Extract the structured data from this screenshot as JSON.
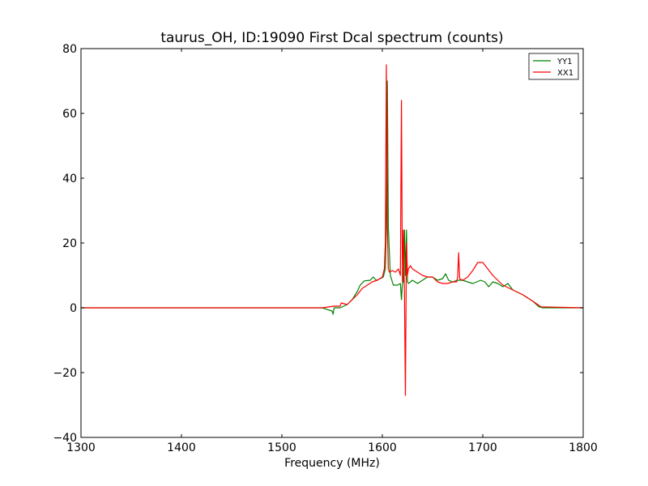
{
  "chart_data": {
    "type": "line",
    "title": "taurus_OH, ID:19090 First Dcal spectrum (counts)",
    "xlabel": "Frequency (MHz)",
    "ylabel": "",
    "xlim": [
      1300,
      1800
    ],
    "ylim": [
      -40,
      80
    ],
    "xticks": [
      1300,
      1400,
      1500,
      1600,
      1700,
      1800
    ],
    "yticks": [
      -40,
      -20,
      0,
      20,
      40,
      60,
      80
    ],
    "xtick_labels": [
      "1300",
      "1400",
      "1500",
      "1600",
      "1700",
      "1800"
    ],
    "ytick_labels": [
      "−40",
      "−20",
      "0",
      "20",
      "40",
      "60",
      "80"
    ],
    "grid": false,
    "legend_position": "top-right",
    "series": [
      {
        "name": "YY1",
        "color": "#008000",
        "x": [
          1300,
          1400,
          1500,
          1540,
          1550,
          1551,
          1552,
          1558,
          1565,
          1570,
          1575,
          1578,
          1582,
          1588,
          1591,
          1594,
          1598,
          1601,
          1603,
          1604,
          1605,
          1606,
          1608,
          1611,
          1615,
          1618,
          1619,
          1620,
          1621,
          1622,
          1623,
          1624,
          1625,
          1626,
          1630,
          1635,
          1640,
          1645,
          1650,
          1655,
          1660,
          1663,
          1666,
          1670,
          1675,
          1680,
          1690,
          1698,
          1702,
          1706,
          1710,
          1715,
          1720,
          1725,
          1730,
          1740,
          1750,
          1756,
          1760,
          1800
        ],
        "y": [
          0,
          0,
          0,
          0,
          -1,
          -2,
          0,
          0,
          1,
          2.5,
          5,
          7,
          8.3,
          8.5,
          9.5,
          8.5,
          9,
          9.5,
          12,
          25,
          70,
          25,
          10,
          7,
          7,
          7.5,
          2.5,
          7.5,
          8,
          24,
          10,
          24,
          8,
          7.5,
          8.5,
          7.5,
          8.5,
          9.5,
          9.5,
          8.5,
          9,
          10.5,
          8.5,
          8,
          8.5,
          8.5,
          7.5,
          8.5,
          8,
          6.5,
          8,
          7.5,
          6.5,
          7.5,
          5.5,
          4,
          2,
          0.3,
          0,
          0
        ]
      },
      {
        "name": "XX1",
        "color": "#ff0000",
        "x": [
          1300,
          1400,
          1500,
          1540,
          1552,
          1558,
          1559,
          1565,
          1570,
          1575,
          1580,
          1585,
          1590,
          1595,
          1600,
          1602,
          1603,
          1604,
          1605,
          1606,
          1607,
          1610,
          1613,
          1616,
          1618,
          1619,
          1620,
          1621,
          1622,
          1623,
          1624,
          1625,
          1626,
          1628,
          1630,
          1635,
          1640,
          1645,
          1650,
          1655,
          1660,
          1665,
          1670,
          1674,
          1675,
          1676,
          1677,
          1680,
          1685,
          1690,
          1695,
          1700,
          1705,
          1710,
          1715,
          1720,
          1730,
          1740,
          1750,
          1758,
          1800
        ],
        "y": [
          0,
          0,
          0,
          0,
          0.5,
          0.5,
          1.5,
          1,
          2.5,
          4,
          6,
          7,
          8,
          8.5,
          9.5,
          12,
          20,
          75,
          25,
          12,
          11,
          11.5,
          11,
          12,
          10,
          64,
          8,
          24,
          5,
          -27,
          20,
          10,
          12,
          13,
          12,
          11,
          10,
          9.5,
          9.5,
          8,
          7.5,
          7.5,
          8,
          8,
          9.5,
          17,
          9,
          8.5,
          9.5,
          11.5,
          14,
          14,
          12,
          10,
          8.5,
          7,
          5.5,
          4,
          2,
          0.3,
          0
        ]
      }
    ]
  }
}
